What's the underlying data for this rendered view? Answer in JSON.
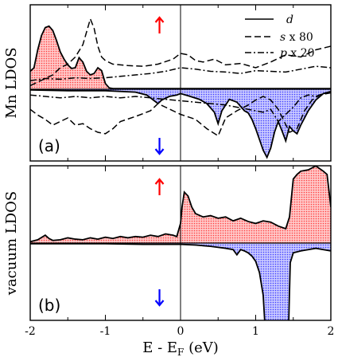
{
  "chart_data": [
    {
      "type": "area",
      "panel_label": "(a)",
      "ylabel": "Mn LDOS",
      "xlim": [
        -2,
        2
      ],
      "legend": {
        "placement": "top-right",
        "entries": [
          {
            "name": "d",
            "label": "d",
            "suffix": "",
            "style": "solid"
          },
          {
            "name": "s x 80",
            "label": "s",
            "suffix": " x 80",
            "style": "dashed"
          },
          {
            "name": "p x 20",
            "label": "p",
            "suffix": " x 20",
            "style": "dashdot"
          }
        ]
      },
      "spin_markers": [
        {
          "name": "spin-up",
          "color": "#ff0000",
          "direction": "up",
          "x": -0.28
        },
        {
          "name": "spin-down",
          "color": "#0000ff",
          "direction": "down",
          "x": -0.28
        }
      ],
      "fill_colors": {
        "up": "#ff9999",
        "down": "#9999ff"
      },
      "series": [
        {
          "name": "d",
          "spin": "up",
          "x": [
            -2.0,
            -1.95,
            -1.9,
            -1.85,
            -1.8,
            -1.75,
            -1.7,
            -1.65,
            -1.6,
            -1.55,
            -1.5,
            -1.45,
            -1.4,
            -1.35,
            -1.3,
            -1.25,
            -1.2,
            -1.15,
            -1.1,
            -1.05,
            -1.0,
            -0.95,
            -0.9,
            -0.5,
            0.0,
            0.5,
            1.0,
            1.5,
            2.0
          ],
          "y": [
            0.25,
            0.3,
            0.55,
            0.75,
            0.86,
            0.88,
            0.82,
            0.68,
            0.52,
            0.42,
            0.34,
            0.29,
            0.3,
            0.44,
            0.38,
            0.25,
            0.2,
            0.22,
            0.3,
            0.26,
            0.08,
            0.02,
            0.01,
            0.01,
            0.01,
            0.01,
            0.01,
            0.01,
            0.01
          ]
        },
        {
          "name": "d",
          "spin": "down",
          "x": [
            -2.0,
            -1.5,
            -1.0,
            -0.6,
            -0.45,
            -0.35,
            -0.3,
            -0.25,
            -0.15,
            -0.05,
            0.0,
            0.1,
            0.25,
            0.35,
            0.45,
            0.5,
            0.55,
            0.65,
            0.75,
            0.85,
            0.9,
            0.95,
            1.0,
            1.05,
            1.1,
            1.15,
            1.2,
            1.25,
            1.3,
            1.35,
            1.4,
            1.45,
            1.5,
            1.55,
            1.6,
            1.7,
            1.8,
            1.9,
            2.0
          ],
          "y": [
            -0.01,
            -0.02,
            -0.02,
            -0.04,
            -0.08,
            -0.16,
            -0.2,
            -0.15,
            -0.1,
            -0.08,
            -0.06,
            -0.09,
            -0.14,
            -0.2,
            -0.32,
            -0.48,
            -0.3,
            -0.14,
            -0.18,
            -0.3,
            -0.33,
            -0.42,
            -0.55,
            -0.7,
            -0.85,
            -0.95,
            -0.82,
            -0.6,
            -0.45,
            -0.58,
            -0.72,
            -0.52,
            -0.58,
            -0.62,
            -0.5,
            -0.3,
            -0.15,
            -0.06,
            -0.03
          ]
        },
        {
          "name": "s x 80",
          "spin": "up",
          "x": [
            -2.0,
            -1.9,
            -1.8,
            -1.7,
            -1.6,
            -1.5,
            -1.4,
            -1.3,
            -1.25,
            -1.2,
            -1.15,
            -1.1,
            -1.05,
            -1.0,
            -0.9,
            -0.7,
            -0.5,
            -0.3,
            -0.1,
            0.0,
            0.1,
            0.2,
            0.3,
            0.45,
            0.6,
            0.8,
            1.0,
            1.2,
            1.4,
            1.6,
            1.8,
            2.0
          ],
          "y": [
            0.05,
            0.1,
            0.15,
            0.2,
            0.3,
            0.35,
            0.45,
            0.62,
            0.8,
            0.98,
            0.85,
            0.6,
            0.45,
            0.4,
            0.35,
            0.33,
            0.32,
            0.35,
            0.42,
            0.5,
            0.48,
            0.4,
            0.38,
            0.42,
            0.34,
            0.36,
            0.3,
            0.38,
            0.48,
            0.45,
            0.55,
            0.6
          ]
        },
        {
          "name": "p x 20",
          "spin": "up",
          "x": [
            -2.0,
            -1.8,
            -1.6,
            -1.4,
            -1.2,
            -1.0,
            -0.8,
            -0.6,
            -0.4,
            -0.2,
            0.0,
            0.2,
            0.4,
            0.6,
            0.8,
            1.0,
            1.2,
            1.4,
            1.6,
            1.8,
            2.0
          ],
          "y": [
            0.12,
            0.15,
            0.14,
            0.16,
            0.15,
            0.16,
            0.18,
            0.2,
            0.22,
            0.25,
            0.3,
            0.28,
            0.25,
            0.24,
            0.22,
            0.26,
            0.25,
            0.24,
            0.28,
            0.32,
            0.3
          ]
        },
        {
          "name": "s x 80",
          "spin": "down",
          "x": [
            -2.0,
            -1.9,
            -1.8,
            -1.7,
            -1.6,
            -1.5,
            -1.4,
            -1.3,
            -1.2,
            -1.1,
            -1.0,
            -0.9,
            -0.8,
            -0.6,
            -0.4,
            -0.3,
            -0.2,
            0.0,
            0.2,
            0.35,
            0.5,
            0.6,
            0.75,
            0.9,
            1.0,
            1.1,
            1.2,
            1.3,
            1.45,
            1.55,
            1.65,
            1.75,
            1.85,
            2.0
          ],
          "y": [
            -0.28,
            -0.36,
            -0.42,
            -0.5,
            -0.45,
            -0.4,
            -0.5,
            -0.48,
            -0.55,
            -0.6,
            -0.62,
            -0.55,
            -0.45,
            -0.38,
            -0.3,
            -0.2,
            -0.25,
            -0.35,
            -0.42,
            -0.55,
            -0.65,
            -0.4,
            -0.3,
            -0.22,
            -0.15,
            -0.1,
            -0.15,
            -0.28,
            -0.6,
            -0.55,
            -0.3,
            -0.15,
            -0.08,
            -0.05
          ]
        },
        {
          "name": "p x 20",
          "spin": "down",
          "x": [
            -2.0,
            -1.8,
            -1.6,
            -1.4,
            -1.2,
            -1.0,
            -0.8,
            -0.6,
            -0.4,
            -0.2,
            0.0,
            0.2,
            0.4,
            0.6,
            0.8,
            1.0,
            1.1,
            1.2,
            1.3,
            1.4,
            1.5,
            1.6,
            1.7,
            1.8,
            1.9,
            2.0
          ],
          "y": [
            -0.08,
            -0.1,
            -0.12,
            -0.1,
            -0.12,
            -0.1,
            -0.12,
            -0.1,
            -0.12,
            -0.14,
            -0.16,
            -0.18,
            -0.2,
            -0.22,
            -0.26,
            -0.3,
            -0.32,
            -0.28,
            -0.45,
            -0.35,
            -0.25,
            -0.12,
            -0.08,
            -0.1,
            -0.06,
            -0.04
          ]
        }
      ]
    },
    {
      "type": "area",
      "panel_label": "(b)",
      "ylabel": "vacuum LDOS",
      "xlabel": "E - E",
      "xlabel_sub": "F",
      "xlabel_unit": " (eV)",
      "xlim": [
        -2,
        2
      ],
      "xticks": [
        -2,
        -1,
        0,
        1,
        2
      ],
      "xtick_labels": [
        "-2",
        "-1",
        "0",
        "1",
        "2"
      ],
      "spin_markers": [
        {
          "name": "spin-up",
          "color": "#ff0000",
          "direction": "up",
          "x": -0.28
        },
        {
          "name": "spin-down",
          "color": "#0000ff",
          "direction": "down",
          "x": -0.28
        }
      ],
      "fill_colors": {
        "up": "#ff9999",
        "down": "#9999ff"
      },
      "series": [
        {
          "name": "vacuum",
          "spin": "up",
          "x": [
            -2.0,
            -1.9,
            -1.8,
            -1.75,
            -1.7,
            -1.6,
            -1.5,
            -1.4,
            -1.3,
            -1.2,
            -1.1,
            -1.0,
            -0.9,
            -0.8,
            -0.7,
            -0.6,
            -0.5,
            -0.4,
            -0.3,
            -0.2,
            -0.1,
            -0.05,
            0.0,
            0.02,
            0.05,
            0.1,
            0.15,
            0.2,
            0.3,
            0.4,
            0.5,
            0.6,
            0.7,
            0.8,
            0.9,
            1.0,
            1.1,
            1.2,
            1.3,
            1.35,
            1.4,
            1.45,
            1.5,
            1.55,
            1.6,
            1.7,
            1.8,
            1.9,
            1.95,
            2.0
          ],
          "y": [
            0.02,
            0.05,
            0.12,
            0.07,
            0.04,
            0.05,
            0.08,
            0.06,
            0.05,
            0.08,
            0.06,
            0.09,
            0.07,
            0.1,
            0.08,
            0.1,
            0.09,
            0.12,
            0.1,
            0.14,
            0.12,
            0.1,
            0.3,
            0.55,
            0.78,
            0.72,
            0.55,
            0.45,
            0.4,
            0.42,
            0.38,
            0.4,
            0.34,
            0.38,
            0.33,
            0.3,
            0.34,
            0.32,
            0.26,
            0.24,
            0.22,
            0.4,
            0.98,
            1.05,
            1.1,
            1.12,
            1.18,
            1.1,
            1.05,
            0.55
          ]
        },
        {
          "name": "vacuum",
          "spin": "down",
          "x": [
            -2.0,
            -1.5,
            -1.0,
            -0.5,
            0.0,
            0.2,
            0.4,
            0.6,
            0.7,
            0.75,
            0.8,
            0.85,
            0.9,
            0.95,
            1.0,
            1.05,
            1.1,
            1.12,
            1.44,
            1.46,
            1.5,
            1.6,
            1.7,
            1.8,
            1.9,
            2.0
          ],
          "y": [
            -0.01,
            -0.01,
            -0.01,
            -0.02,
            -0.02,
            -0.03,
            -0.05,
            -0.08,
            -0.1,
            -0.18,
            -0.1,
            -0.12,
            -0.15,
            -0.2,
            -0.28,
            -0.45,
            -0.8,
            -1.2,
            -1.2,
            -0.3,
            -0.15,
            -0.12,
            -0.1,
            -0.08,
            -0.1,
            -0.12
          ]
        }
      ]
    }
  ]
}
